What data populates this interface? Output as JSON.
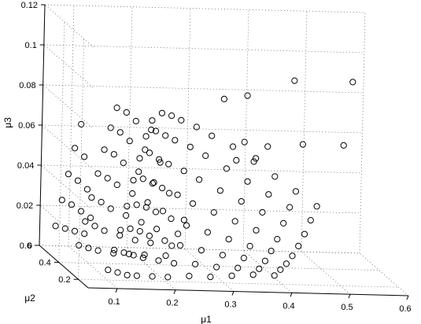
{
  "chart_data": {
    "type": "scatter",
    "title": "",
    "xlabel": "μ1",
    "ylabel": "μ2",
    "zlabel": "μ3",
    "x_ticks": [
      "0.1",
      "0.2",
      "0.3",
      "0.4",
      "0.5",
      "0.6"
    ],
    "y_ticks": [
      "0.2",
      "0.4",
      "0.6"
    ],
    "z_ticks": [
      "0",
      "0.02",
      "0.04",
      "0.06",
      "0.08",
      "0.1",
      "0.12"
    ],
    "xlim": [
      0.05,
      0.6
    ],
    "ylim": [
      0.1,
      0.6
    ],
    "zlim": [
      0,
      0.12
    ],
    "grid": true,
    "marker": "open-circle",
    "marker_color": "#000000",
    "points": [
      [
        0.08,
        0.08,
        0.01
      ],
      [
        0.09,
        0.08,
        0.02
      ],
      [
        0.1,
        0.08,
        0.03
      ],
      [
        0.11,
        0.08,
        0.042
      ],
      [
        0.12,
        0.08,
        0.055
      ],
      [
        0.13,
        0.08,
        0.066
      ],
      [
        0.14,
        0.08,
        0.077
      ],
      [
        0.15,
        0.08,
        0.085
      ],
      [
        0.1,
        0.1,
        0.008
      ],
      [
        0.11,
        0.1,
        0.018
      ],
      [
        0.12,
        0.1,
        0.03
      ],
      [
        0.13,
        0.1,
        0.042
      ],
      [
        0.14,
        0.1,
        0.055
      ],
      [
        0.15,
        0.1,
        0.068
      ],
      [
        0.16,
        0.1,
        0.079
      ],
      [
        0.17,
        0.1,
        0.088
      ],
      [
        0.12,
        0.12,
        0.006
      ],
      [
        0.13,
        0.12,
        0.016
      ],
      [
        0.14,
        0.12,
        0.028
      ],
      [
        0.15,
        0.12,
        0.04
      ],
      [
        0.16,
        0.12,
        0.052
      ],
      [
        0.17,
        0.12,
        0.064
      ],
      [
        0.18,
        0.12,
        0.076
      ],
      [
        0.19,
        0.12,
        0.086
      ],
      [
        0.14,
        0.14,
        0.005
      ],
      [
        0.15,
        0.14,
        0.014
      ],
      [
        0.16,
        0.14,
        0.025
      ],
      [
        0.17,
        0.14,
        0.037
      ],
      [
        0.18,
        0.14,
        0.049
      ],
      [
        0.19,
        0.14,
        0.061
      ],
      [
        0.2,
        0.14,
        0.073
      ],
      [
        0.21,
        0.14,
        0.083
      ],
      [
        0.17,
        0.16,
        0.004
      ],
      [
        0.18,
        0.16,
        0.012
      ],
      [
        0.19,
        0.16,
        0.022
      ],
      [
        0.2,
        0.16,
        0.033
      ],
      [
        0.21,
        0.16,
        0.045
      ],
      [
        0.22,
        0.16,
        0.057
      ],
      [
        0.23,
        0.16,
        0.069
      ],
      [
        0.24,
        0.16,
        0.079
      ],
      [
        0.2,
        0.18,
        0.003
      ],
      [
        0.21,
        0.18,
        0.01
      ],
      [
        0.22,
        0.18,
        0.019
      ],
      [
        0.23,
        0.18,
        0.029
      ],
      [
        0.24,
        0.18,
        0.04
      ],
      [
        0.25,
        0.18,
        0.052
      ],
      [
        0.26,
        0.18,
        0.064
      ],
      [
        0.27,
        0.18,
        0.074
      ],
      [
        0.24,
        0.2,
        0.003
      ],
      [
        0.25,
        0.2,
        0.009
      ],
      [
        0.26,
        0.2,
        0.016
      ],
      [
        0.27,
        0.2,
        0.025
      ],
      [
        0.28,
        0.2,
        0.035
      ],
      [
        0.29,
        0.2,
        0.046
      ],
      [
        0.3,
        0.2,
        0.057
      ],
      [
        0.31,
        0.2,
        0.068
      ],
      [
        0.28,
        0.22,
        0.002
      ],
      [
        0.29,
        0.22,
        0.007
      ],
      [
        0.3,
        0.22,
        0.013
      ],
      [
        0.31,
        0.22,
        0.021
      ],
      [
        0.32,
        0.22,
        0.03
      ],
      [
        0.33,
        0.22,
        0.04
      ],
      [
        0.34,
        0.22,
        0.05
      ],
      [
        0.35,
        0.22,
        0.06
      ],
      [
        0.32,
        0.24,
        0.002
      ],
      [
        0.33,
        0.24,
        0.006
      ],
      [
        0.34,
        0.24,
        0.011
      ],
      [
        0.35,
        0.24,
        0.017
      ],
      [
        0.36,
        0.24,
        0.025
      ],
      [
        0.37,
        0.24,
        0.034
      ],
      [
        0.38,
        0.24,
        0.043
      ],
      [
        0.39,
        0.24,
        0.052
      ],
      [
        0.36,
        0.26,
        0.002
      ],
      [
        0.37,
        0.26,
        0.005
      ],
      [
        0.38,
        0.26,
        0.009
      ],
      [
        0.39,
        0.26,
        0.014
      ],
      [
        0.4,
        0.26,
        0.02
      ],
      [
        0.41,
        0.26,
        0.028
      ],
      [
        0.42,
        0.26,
        0.036
      ],
      [
        0.43,
        0.26,
        0.044
      ],
      [
        0.4,
        0.28,
        0.001
      ],
      [
        0.41,
        0.28,
        0.004
      ],
      [
        0.42,
        0.28,
        0.007
      ],
      [
        0.43,
        0.28,
        0.011
      ],
      [
        0.44,
        0.28,
        0.016
      ],
      [
        0.45,
        0.28,
        0.022
      ],
      [
        0.46,
        0.28,
        0.029
      ],
      [
        0.47,
        0.28,
        0.036
      ],
      [
        0.07,
        0.32,
        0.012
      ],
      [
        0.08,
        0.32,
        0.024
      ],
      [
        0.09,
        0.32,
        0.036
      ],
      [
        0.1,
        0.32,
        0.048
      ],
      [
        0.11,
        0.32,
        0.06
      ],
      [
        0.12,
        0.32,
        0.071
      ],
      [
        0.13,
        0.32,
        0.081
      ],
      [
        0.09,
        0.34,
        0.01
      ],
      [
        0.1,
        0.34,
        0.021
      ],
      [
        0.11,
        0.34,
        0.033
      ],
      [
        0.12,
        0.34,
        0.045
      ],
      [
        0.13,
        0.34,
        0.057
      ],
      [
        0.14,
        0.34,
        0.068
      ],
      [
        0.15,
        0.34,
        0.078
      ],
      [
        0.11,
        0.36,
        0.008
      ],
      [
        0.12,
        0.36,
        0.018
      ],
      [
        0.13,
        0.36,
        0.029
      ],
      [
        0.14,
        0.36,
        0.041
      ],
      [
        0.15,
        0.36,
        0.052
      ],
      [
        0.16,
        0.36,
        0.063
      ],
      [
        0.17,
        0.36,
        0.073
      ],
      [
        0.14,
        0.38,
        0.006
      ],
      [
        0.15,
        0.38,
        0.015
      ],
      [
        0.16,
        0.38,
        0.025
      ],
      [
        0.17,
        0.38,
        0.036
      ],
      [
        0.18,
        0.38,
        0.047
      ],
      [
        0.19,
        0.38,
        0.058
      ],
      [
        0.2,
        0.38,
        0.068
      ],
      [
        0.17,
        0.4,
        0.005
      ],
      [
        0.18,
        0.4,
        0.012
      ],
      [
        0.19,
        0.4,
        0.021
      ],
      [
        0.2,
        0.4,
        0.031
      ],
      [
        0.21,
        0.4,
        0.041
      ],
      [
        0.22,
        0.4,
        0.051
      ],
      [
        0.2,
        0.42,
        0.004
      ],
      [
        0.21,
        0.42,
        0.01
      ],
      [
        0.22,
        0.42,
        0.017
      ],
      [
        0.23,
        0.42,
        0.026
      ],
      [
        0.24,
        0.42,
        0.035
      ],
      [
        0.24,
        0.44,
        0.003
      ],
      [
        0.25,
        0.44,
        0.008
      ],
      [
        0.26,
        0.44,
        0.014
      ],
      [
        0.27,
        0.44,
        0.021
      ],
      [
        0.06,
        0.5,
        0.014
      ],
      [
        0.07,
        0.5,
        0.027
      ],
      [
        0.08,
        0.5,
        0.04
      ],
      [
        0.09,
        0.5,
        0.053
      ],
      [
        0.1,
        0.5,
        0.065
      ],
      [
        0.08,
        0.52,
        0.012
      ],
      [
        0.09,
        0.52,
        0.024
      ],
      [
        0.1,
        0.52,
        0.036
      ],
      [
        0.11,
        0.52,
        0.048
      ],
      [
        0.1,
        0.54,
        0.01
      ],
      [
        0.11,
        0.54,
        0.02
      ],
      [
        0.12,
        0.54,
        0.031
      ],
      [
        0.12,
        0.56,
        0.008
      ],
      [
        0.13,
        0.56,
        0.016
      ],
      [
        0.3,
        0.24,
        0.09
      ],
      [
        0.34,
        0.24,
        0.092
      ],
      [
        0.42,
        0.24,
        0.1
      ],
      [
        0.52,
        0.24,
        0.1
      ],
      [
        0.43,
        0.2,
        0.07
      ],
      [
        0.5,
        0.2,
        0.07
      ],
      [
        0.34,
        0.26,
        0.068
      ],
      [
        0.38,
        0.26,
        0.066
      ],
      [
        0.36,
        0.26,
        0.06
      ],
      [
        0.33,
        0.28,
        0.058
      ]
    ]
  }
}
